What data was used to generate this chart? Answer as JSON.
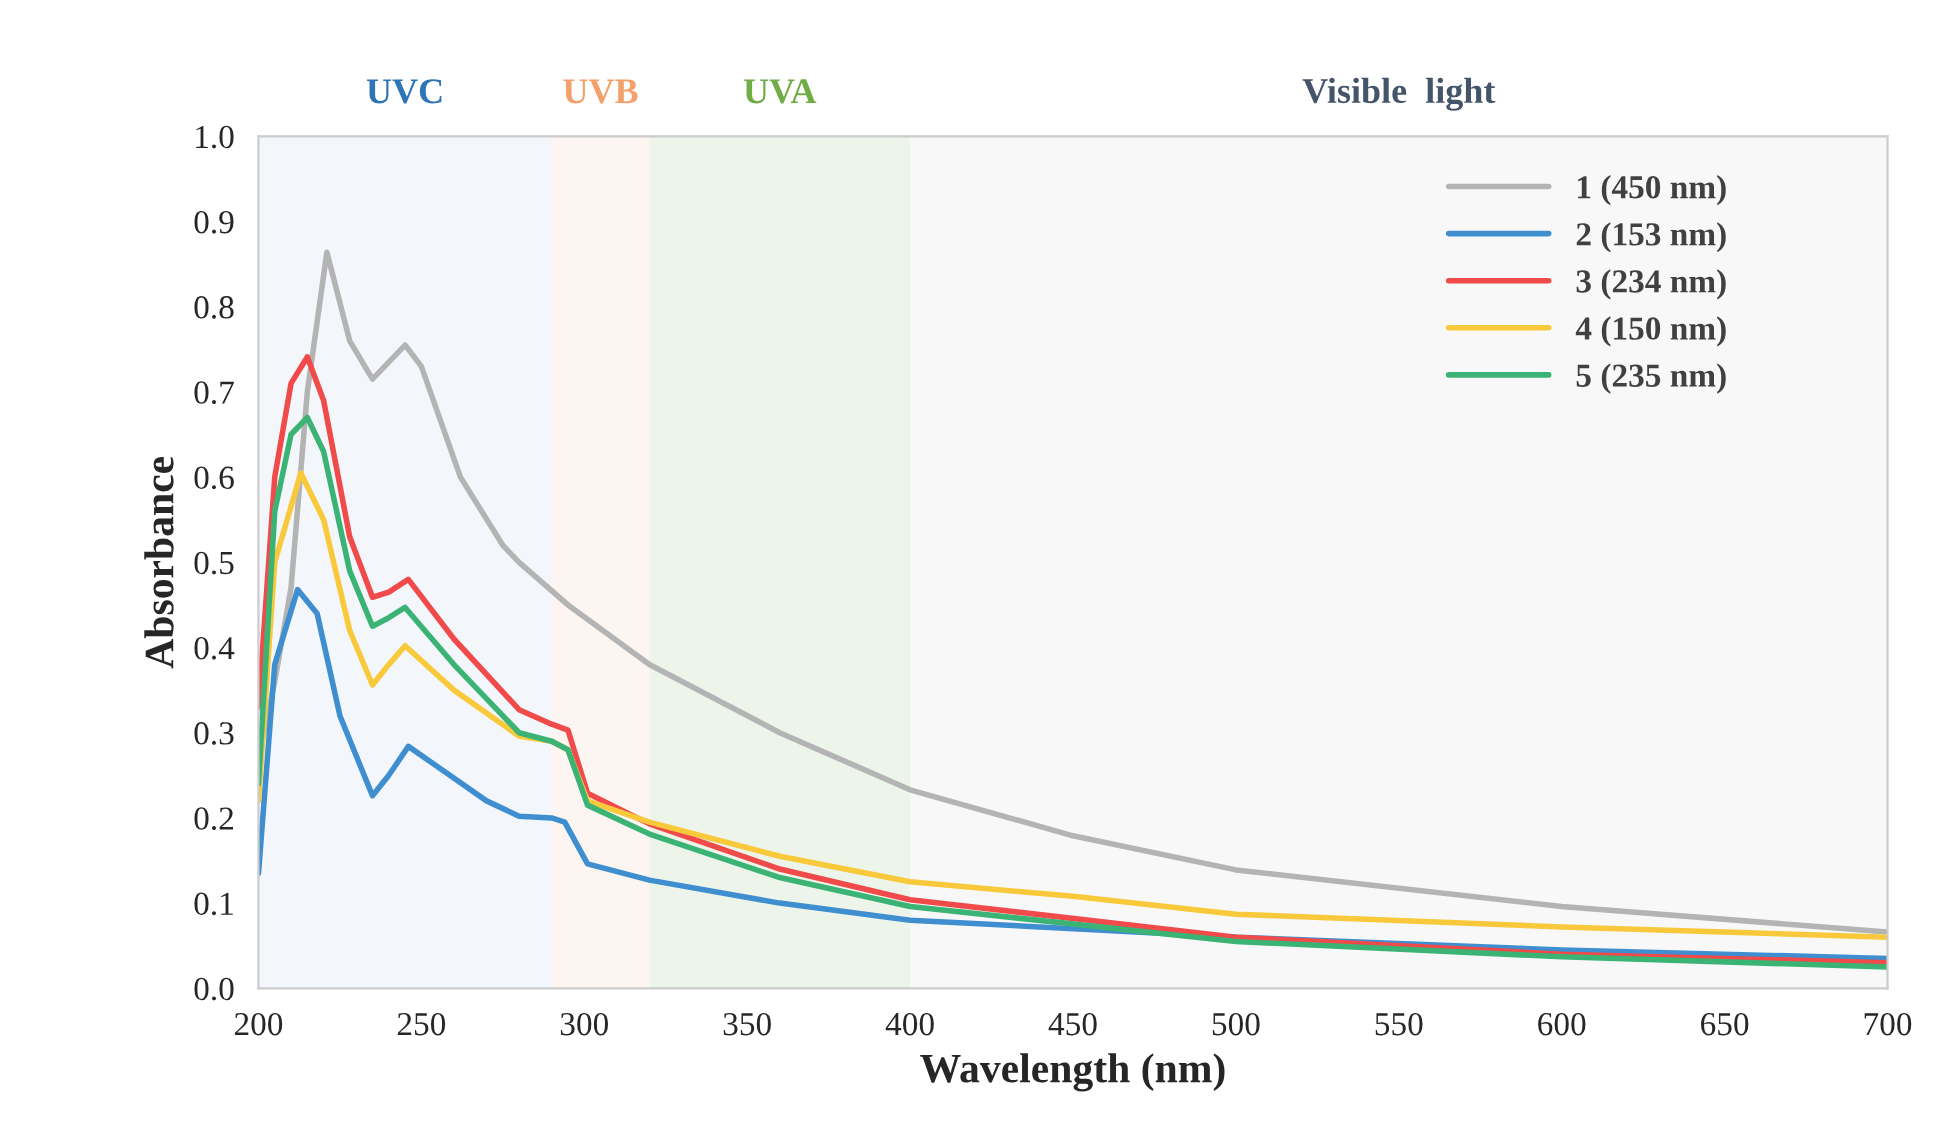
{
  "chart_data": {
    "type": "line",
    "xlabel": "Wavelength (nm)",
    "ylabel": "Absorbance",
    "xlim": [
      200,
      700
    ],
    "xticks": [
      200,
      250,
      300,
      350,
      400,
      450,
      500,
      550,
      600,
      650,
      700
    ],
    "ylim": [
      0,
      1.0
    ],
    "yticks": [
      {
        "value": 0,
        "label": "0.0"
      },
      0.1,
      0.2,
      0.3,
      0.4,
      0.5,
      0.6,
      0.7,
      0.8,
      0.9,
      {
        "value": 1.0,
        "label": "1.0"
      }
    ],
    "grid": false,
    "legend": "top right",
    "line_style": "solid",
    "marker": "none",
    "bands": [
      {
        "axis": "x",
        "from": 200,
        "to": 290,
        "label": "UVC",
        "color": "#f3f7fc"
      },
      {
        "axis": "x",
        "from": 290,
        "to": 320,
        "label": "UVB",
        "color": "#fdf5f2"
      },
      {
        "axis": "x",
        "from": 320,
        "to": 400,
        "label": "UVA",
        "color": "#edf4ea"
      },
      {
        "axis": "x",
        "from": 400,
        "to": 700,
        "label": "Visible  light",
        "color": "#f8f8f8"
      }
    ],
    "series": [
      {
        "name": "1 (450 nm)",
        "color": "#b4b4b4",
        "x": [
          200,
          205,
          210,
          215,
          221,
          228,
          235,
          240,
          245,
          250,
          262,
          275,
          280,
          295,
          320,
          360,
          400,
          450,
          500,
          600,
          700
        ],
        "values": [
          0.27,
          0.36,
          0.47,
          0.7,
          0.864,
          0.76,
          0.715,
          0.735,
          0.755,
          0.73,
          0.6,
          0.52,
          0.5,
          0.45,
          0.38,
          0.3,
          0.233,
          0.179,
          0.139,
          0.096,
          0.066
        ]
      },
      {
        "name": "2 (153 nm)",
        "color": "#3f8ed0",
        "x": [
          200,
          205,
          212,
          218,
          225,
          235,
          240,
          246,
          255,
          270,
          280,
          290,
          294,
          301,
          320,
          360,
          400,
          500,
          600,
          700
        ],
        "values": [
          0.135,
          0.38,
          0.468,
          0.44,
          0.32,
          0.226,
          0.25,
          0.284,
          0.26,
          0.22,
          0.202,
          0.2,
          0.195,
          0.146,
          0.127,
          0.1,
          0.08,
          0.06,
          0.045,
          0.035
        ]
      },
      {
        "name": "3 (234 nm)",
        "color": "#f04a4a",
        "x": [
          200,
          205,
          210,
          215,
          220,
          228,
          235,
          240,
          246,
          260,
          280,
          290,
          295,
          301,
          320,
          360,
          400,
          500,
          600,
          700
        ],
        "values": [
          0.33,
          0.6,
          0.71,
          0.741,
          0.69,
          0.53,
          0.459,
          0.465,
          0.48,
          0.41,
          0.327,
          0.31,
          0.303,
          0.229,
          0.193,
          0.14,
          0.104,
          0.06,
          0.04,
          0.03
        ]
      },
      {
        "name": "4 (150 nm)",
        "color": "#f8c93a",
        "x": [
          200,
          205,
          213,
          220,
          228,
          235,
          240,
          245,
          260,
          280,
          290,
          295,
          301,
          320,
          360,
          400,
          450,
          500,
          600,
          700
        ],
        "values": [
          0.22,
          0.5,
          0.605,
          0.55,
          0.42,
          0.356,
          0.38,
          0.402,
          0.35,
          0.296,
          0.29,
          0.28,
          0.22,
          0.195,
          0.155,
          0.125,
          0.108,
          0.087,
          0.072,
          0.06
        ]
      },
      {
        "name": "5 (235 nm)",
        "color": "#3bb374",
        "x": [
          200,
          205,
          210,
          215,
          220,
          228,
          235,
          240,
          245,
          260,
          280,
          290,
          295,
          301,
          320,
          360,
          400,
          500,
          600,
          700
        ],
        "values": [
          0.24,
          0.56,
          0.65,
          0.67,
          0.63,
          0.49,
          0.425,
          0.435,
          0.447,
          0.38,
          0.3,
          0.29,
          0.28,
          0.215,
          0.181,
          0.13,
          0.096,
          0.055,
          0.037,
          0.025
        ]
      }
    ]
  }
}
